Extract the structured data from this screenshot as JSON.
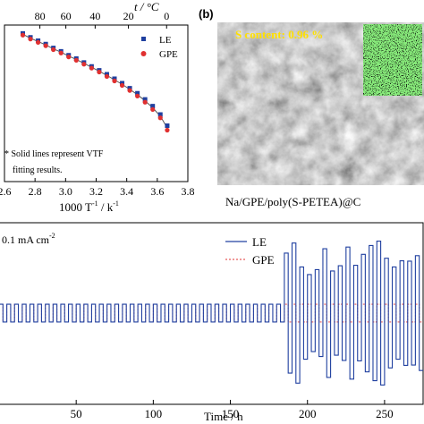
{
  "panel_b": {
    "label": "(b)",
    "sem_text": "S content: 0.96 %",
    "caption": "Na/GPE/poly(S-PETEA)@C"
  },
  "chart_data": [
    {
      "type": "scatter",
      "xlabel_parts": [
        "1000 T",
        "-1",
        " / k",
        "-1"
      ],
      "top_xlabel": "t / °C",
      "x_ticks": [
        "2.6",
        "2.8",
        "3.0",
        "3.2",
        "3.4",
        "3.6",
        "3.8"
      ],
      "x_tick_values": [
        2.6,
        2.8,
        3.0,
        3.2,
        3.4,
        3.6,
        3.8
      ],
      "top_ticks": [
        "80",
        "60",
        "40",
        "20",
        "0"
      ],
      "top_tick_values": [
        80,
        60,
        40,
        20,
        0
      ],
      "xlim": [
        2.6,
        3.8
      ],
      "ylim": [
        -5.3,
        -2.5
      ],
      "legend_position": "top-right",
      "annotation": [
        "* Solid lines represent VTF",
        "fitting results."
      ],
      "series": [
        {
          "name": "LE",
          "color": "#1f3f9f",
          "marker": "square",
          "x": [
            2.72,
            2.77,
            2.82,
            2.87,
            2.92,
            2.97,
            3.02,
            3.07,
            3.12,
            3.17,
            3.22,
            3.27,
            3.32,
            3.37,
            3.42,
            3.47,
            3.52,
            3.57,
            3.62,
            3.665
          ],
          "y": [
            -2.65,
            -2.72,
            -2.78,
            -2.84,
            -2.91,
            -2.97,
            -3.04,
            -3.1,
            -3.17,
            -3.24,
            -3.31,
            -3.38,
            -3.46,
            -3.54,
            -3.63,
            -3.72,
            -3.83,
            -3.95,
            -4.1,
            -4.3
          ]
        },
        {
          "name": "GPE",
          "color": "#e03030",
          "marker": "circle",
          "x": [
            2.72,
            2.77,
            2.82,
            2.87,
            2.92,
            2.97,
            3.02,
            3.07,
            3.12,
            3.17,
            3.22,
            3.27,
            3.32,
            3.37,
            3.42,
            3.47,
            3.52,
            3.57,
            3.62,
            3.665
          ],
          "y": [
            -2.68,
            -2.75,
            -2.81,
            -2.87,
            -2.94,
            -3.0,
            -3.07,
            -3.13,
            -3.2,
            -3.27,
            -3.34,
            -3.42,
            -3.5,
            -3.58,
            -3.67,
            -3.77,
            -3.88,
            -4.01,
            -4.16,
            -4.38
          ]
        }
      ]
    },
    {
      "type": "line",
      "annotation": "0.1 mA cm",
      "annotation_sup": "-2",
      "xlabel": "Time / h",
      "x_ticks": [
        "50",
        "100",
        "150",
        "200",
        "250"
      ],
      "x_tick_values": [
        50,
        100,
        150,
        200,
        250
      ],
      "xlim": [
        0,
        275
      ],
      "ylim": [
        -1,
        1
      ],
      "legend_position": "top-right",
      "series": [
        {
          "name": "LE",
          "color": "#2040a0",
          "style": "solid",
          "square_wave": {
            "start": 0,
            "end": 185,
            "period": 5,
            "amplitude": 0.09
          },
          "unstable_segment": {
            "start": 185,
            "end": 275,
            "period": 5,
            "amplitude_min": 0.35,
            "amplitude_max": 0.75
          }
        },
        {
          "name": "GPE",
          "color": "#e03030",
          "style": "dashed",
          "square_wave": {
            "start": 0,
            "end": 275,
            "period": 5,
            "amplitude": 0.09
          }
        }
      ]
    }
  ]
}
